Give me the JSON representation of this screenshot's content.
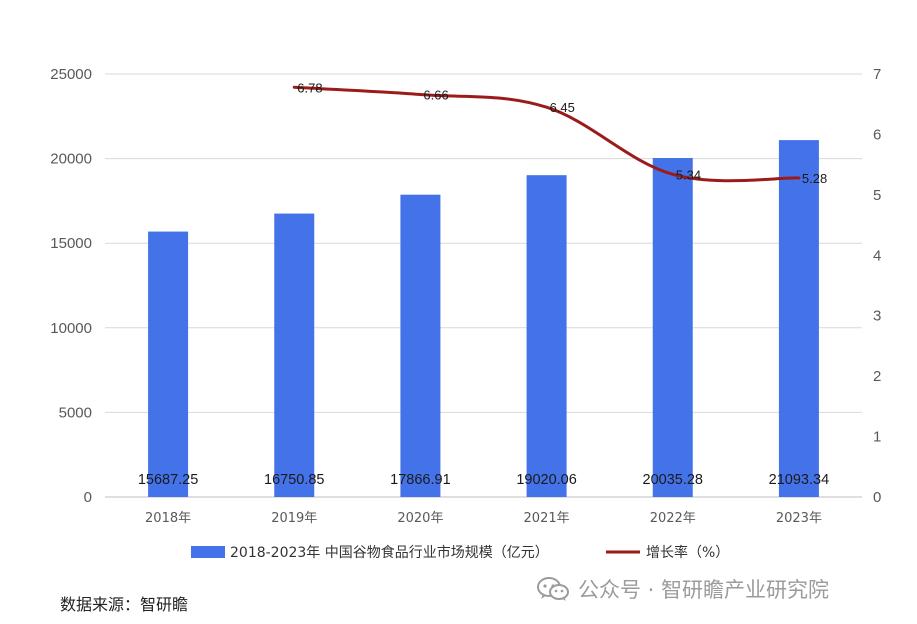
{
  "chart_data": {
    "type": "bar",
    "categories": [
      "2018年",
      "2019年",
      "2020年",
      "2021年",
      "2022年",
      "2023年"
    ],
    "series": [
      {
        "name": "2018-2023年 中国谷物食品行业市场规模（亿元）",
        "type": "bar",
        "axis": "left",
        "values": [
          15687.25,
          16750.85,
          17866.91,
          19020.06,
          20035.28,
          21093.34
        ],
        "labels": [
          "15687.25",
          "16750.85",
          "17866.91",
          "19020.06",
          "20035.28",
          "21093.34"
        ],
        "color": "#4472e8"
      },
      {
        "name": "增长率（%）",
        "type": "line",
        "axis": "right",
        "values": [
          null,
          6.78,
          6.66,
          6.45,
          5.34,
          5.28
        ],
        "labels": [
          "",
          "6.78",
          "6.66",
          "6.45",
          "5.34",
          "5.28"
        ],
        "color": "#9b1b1b"
      }
    ],
    "y_left": {
      "ylim": [
        0,
        25000
      ],
      "ticks": [
        "0",
        "5000",
        "10000",
        "15000",
        "20000",
        "25000"
      ]
    },
    "y_right": {
      "ylim": [
        0,
        7
      ],
      "ticks": [
        "0",
        "1",
        "2",
        "3",
        "4",
        "5",
        "6",
        "7"
      ]
    },
    "grid": true,
    "legend_position": "bottom"
  },
  "source_text": "数据来源：智研瞻",
  "watermark": {
    "icon": "wechat-icon",
    "text": "公众号 · 智研瞻产业研究院"
  }
}
